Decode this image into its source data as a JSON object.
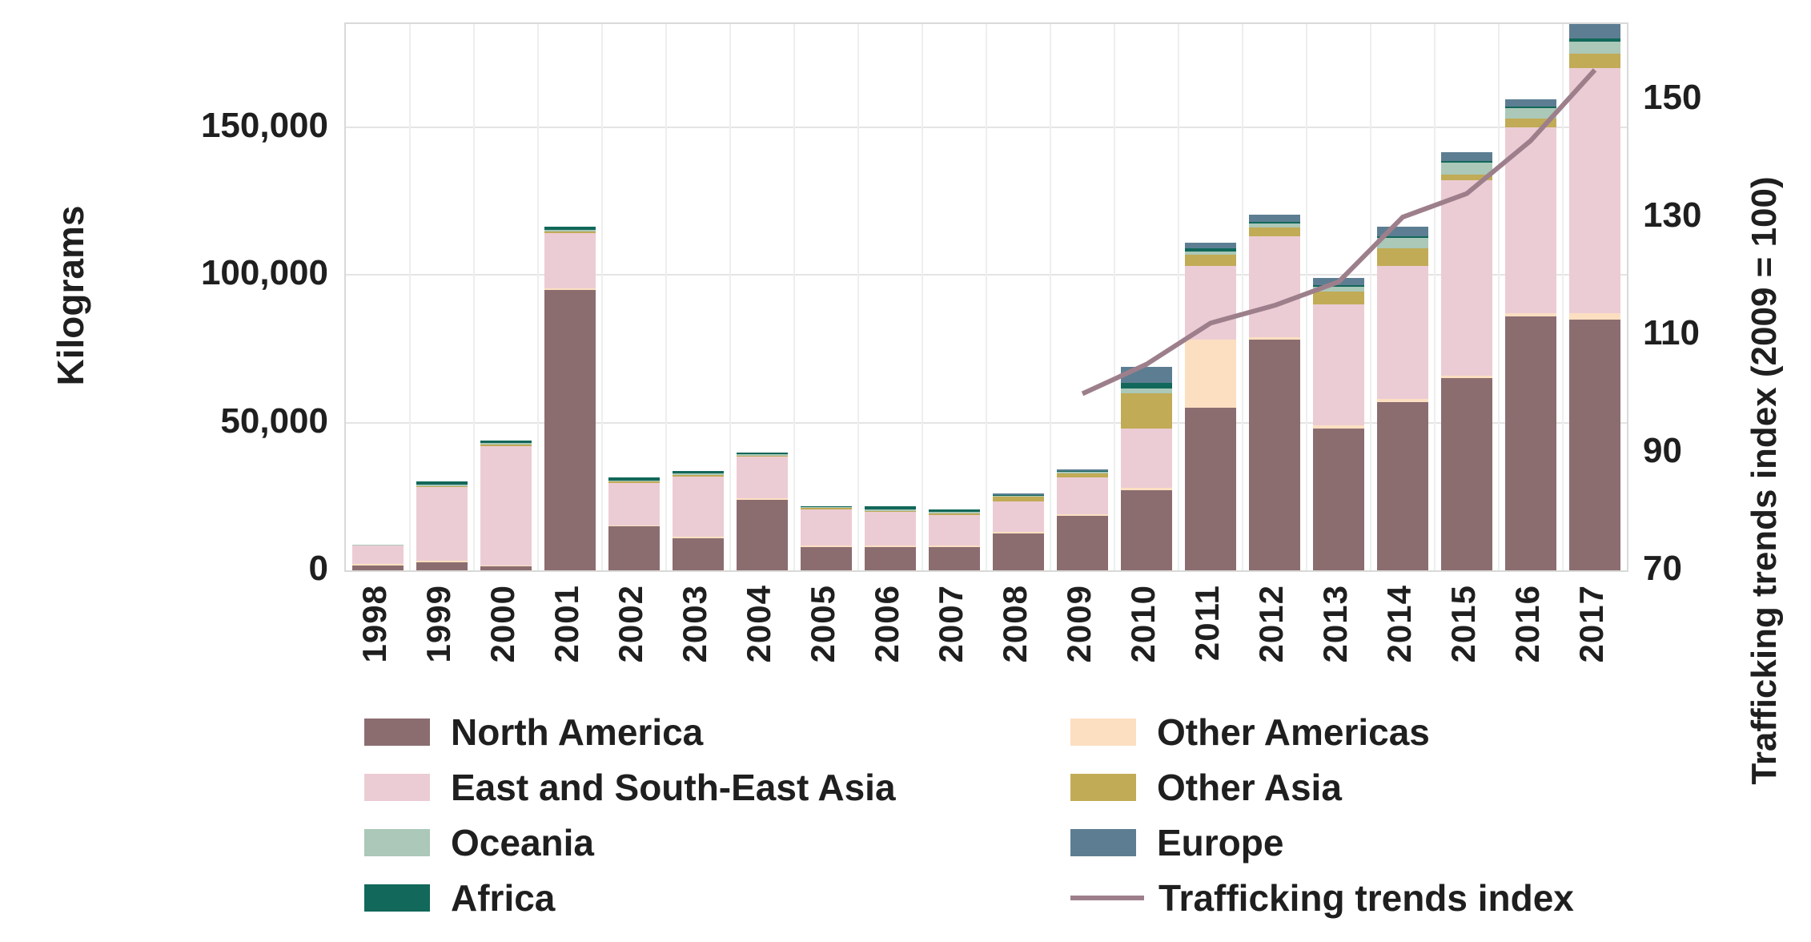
{
  "chart_data": {
    "type": "bar",
    "stacked": true,
    "grid": true,
    "ylabel_left": "Kilograms",
    "ylabel_right": "Trafficking trends index (2009 = 100)",
    "categories": [
      "1998",
      "1999",
      "2000",
      "2001",
      "2002",
      "2003",
      "2004",
      "2005",
      "2006",
      "2007",
      "2008",
      "2009",
      "2010",
      "2011",
      "2012",
      "2013",
      "2014",
      "2015",
      "2016",
      "2017"
    ],
    "series": [
      {
        "name": "North America",
        "color": "#8b6d70",
        "values": [
          2000,
          3000,
          1500,
          95000,
          15000,
          11000,
          24000,
          8000,
          8000,
          8000,
          12500,
          18500,
          27000,
          55000,
          78000,
          48000,
          57000,
          65000,
          86000,
          85000
        ]
      },
      {
        "name": "Other Americas",
        "color": "#fcdfc1",
        "values": [
          100,
          200,
          200,
          400,
          300,
          300,
          400,
          300,
          300,
          300,
          400,
          500,
          1000,
          23000,
          1000,
          1000,
          1000,
          1000,
          1000,
          2000
        ]
      },
      {
        "name": "East and South-East Asia",
        "color": "#ecccd4",
        "values": [
          6500,
          25000,
          40500,
          19000,
          14500,
          20500,
          14000,
          12500,
          11500,
          10500,
          10500,
          12500,
          20000,
          25000,
          34000,
          41000,
          45000,
          66000,
          63000,
          83000
        ]
      },
      {
        "name": "Other Asia",
        "color": "#c1ab56",
        "values": [
          0,
          300,
          300,
          300,
          300,
          400,
          400,
          300,
          400,
          500,
          1500,
          1300,
          12000,
          4000,
          3000,
          4500,
          6000,
          2000,
          3000,
          5000
        ]
      },
      {
        "name": "Oceania",
        "color": "#abc8b8",
        "values": [
          200,
          500,
          500,
          500,
          400,
          500,
          500,
          400,
          400,
          400,
          500,
          600,
          1500,
          1000,
          1500,
          1500,
          3500,
          4000,
          3500,
          4000
        ]
      },
      {
        "name": "Africa",
        "color": "#12685a",
        "values": [
          0,
          1200,
          1000,
          1300,
          1000,
          1000,
          500,
          300,
          1000,
          1000,
          300,
          400,
          2000,
          1000,
          500,
          500,
          500,
          500,
          500,
          1000
        ]
      },
      {
        "name": "Europe",
        "color": "#5d7e92",
        "values": [
          0,
          0,
          0,
          0,
          0,
          0,
          0,
          0,
          0,
          0,
          300,
          300,
          5500,
          2000,
          2500,
          2500,
          3500,
          3000,
          2500,
          5000
        ]
      }
    ],
    "line_series": {
      "name": "Trafficking trends index",
      "color": "#9d7f8b",
      "x": [
        "2009",
        "2010",
        "2011",
        "2012",
        "2013",
        "2014",
        "2015",
        "2016",
        "2017"
      ],
      "values": [
        100,
        105,
        112,
        115,
        119,
        130,
        134,
        143,
        155
      ]
    },
    "left_axis": {
      "min": 0,
      "max": 185000,
      "ticks": [
        0,
        50000,
        100000,
        150000
      ],
      "tick_labels": [
        "0",
        "50,000",
        "100,000",
        "150,000"
      ]
    },
    "right_axis": {
      "min": 70,
      "max": 162.8,
      "ticks": [
        70,
        90,
        110,
        130,
        150
      ],
      "tick_labels": [
        "70",
        "90",
        "110",
        "130",
        "150"
      ]
    },
    "legend": {
      "columns": [
        {
          "items": [
            {
              "label": "North America",
              "color": "#8b6d70",
              "type": "box"
            },
            {
              "label": "East and South-East Asia",
              "color": "#ecccd4",
              "type": "box"
            },
            {
              "label": "Oceania",
              "color": "#abc8b8",
              "type": "box"
            },
            {
              "label": "Africa",
              "color": "#12685a",
              "type": "box"
            }
          ]
        },
        {
          "items": [
            {
              "label": "Other Americas",
              "color": "#fcdfc1",
              "type": "box"
            },
            {
              "label": "Other Asia",
              "color": "#c1ab56",
              "type": "box"
            },
            {
              "label": "Europe",
              "color": "#5d7e92",
              "type": "box"
            },
            {
              "label": "Trafficking trends index",
              "color": "#9d7f8b",
              "type": "line"
            }
          ]
        }
      ]
    }
  }
}
